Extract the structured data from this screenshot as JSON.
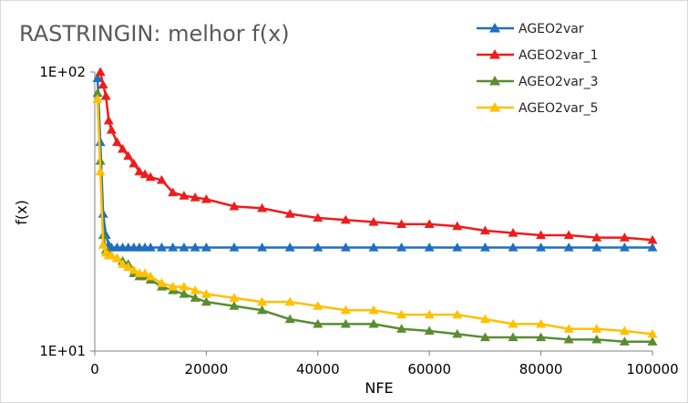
{
  "chart_data": {
    "type": "line",
    "title": "RASTRINGIN: melhor f(x)",
    "xlabel": "NFE",
    "ylabel": "f(x)",
    "xlim": [
      0,
      100000
    ],
    "ylim": [
      10,
      100
    ],
    "yscale": "log",
    "x_ticks": [
      0,
      20000,
      40000,
      60000,
      80000,
      100000
    ],
    "x_tick_labels": [
      "0",
      "20000",
      "40000",
      "60000",
      "80000",
      "100000"
    ],
    "y_ticks": [
      10,
      100
    ],
    "y_tick_labels": [
      "1E+01",
      "1E+02"
    ],
    "grid": false,
    "legend_position": "top-right",
    "marker": "triangle",
    "series": [
      {
        "name": "AGEO2var",
        "color": "#1f6fbf",
        "x": [
          500,
          1000,
          1500,
          2000,
          2500,
          3000,
          4000,
          5000,
          6000,
          7000,
          8000,
          9000,
          10000,
          12000,
          14000,
          16000,
          18000,
          20000,
          25000,
          30000,
          35000,
          40000,
          45000,
          50000,
          55000,
          60000,
          65000,
          70000,
          75000,
          80000,
          85000,
          90000,
          95000,
          100000
        ],
        "y": [
          95,
          56,
          31,
          26,
          24,
          23.5,
          23.5,
          23.5,
          23.5,
          23.5,
          23.5,
          23.5,
          23.5,
          23.5,
          23.5,
          23.5,
          23.5,
          23.5,
          23.5,
          23.5,
          23.5,
          23.5,
          23.5,
          23.5,
          23.5,
          23.5,
          23.5,
          23.5,
          23.5,
          23.5,
          23.5,
          23.5,
          23.5,
          23.5
        ]
      },
      {
        "name": "AGEO2var_1",
        "color": "#ee1c1c",
        "x": [
          1000,
          1500,
          2000,
          2500,
          3000,
          4000,
          5000,
          6000,
          7000,
          8000,
          9000,
          10000,
          12000,
          14000,
          16000,
          18000,
          20000,
          25000,
          30000,
          35000,
          40000,
          45000,
          50000,
          55000,
          60000,
          65000,
          70000,
          75000,
          80000,
          85000,
          90000,
          95000,
          100000
        ],
        "y": [
          100,
          90,
          82,
          67,
          62,
          56,
          53,
          50,
          47,
          44,
          43,
          42,
          41,
          37,
          36,
          35.5,
          35,
          33,
          32.5,
          31,
          30,
          29.5,
          29,
          28.5,
          28.5,
          28,
          27,
          26.5,
          26,
          26,
          25.5,
          25.5,
          25
        ]
      },
      {
        "name": "AGEO2var_3",
        "color": "#5a8c32",
        "x": [
          500,
          1000,
          1500,
          2000,
          2500,
          3000,
          4000,
          5000,
          6000,
          7000,
          8000,
          9000,
          10000,
          12000,
          14000,
          16000,
          18000,
          20000,
          25000,
          30000,
          35000,
          40000,
          45000,
          50000,
          55000,
          60000,
          65000,
          70000,
          75000,
          80000,
          85000,
          90000,
          95000,
          100000
        ],
        "y": [
          84,
          48,
          26,
          23,
          22.5,
          22,
          21.5,
          21,
          20.5,
          19,
          18.5,
          18.5,
          18,
          17,
          16.5,
          16,
          15.5,
          15,
          14.5,
          14,
          13,
          12.5,
          12.5,
          12.5,
          12,
          11.8,
          11.5,
          11.2,
          11.2,
          11.2,
          11,
          11,
          10.8,
          10.8
        ]
      },
      {
        "name": "AGEO2var_5",
        "color": "#ffc000",
        "x": [
          500,
          1000,
          1500,
          2000,
          2500,
          3000,
          4000,
          5000,
          6000,
          7000,
          8000,
          9000,
          10000,
          12000,
          14000,
          16000,
          18000,
          20000,
          25000,
          30000,
          35000,
          40000,
          45000,
          50000,
          55000,
          60000,
          65000,
          70000,
          75000,
          80000,
          85000,
          90000,
          95000,
          100000
        ],
        "y": [
          80,
          44,
          24,
          22.5,
          22,
          22,
          21.5,
          20.5,
          20,
          19.5,
          19,
          19,
          18.5,
          17.5,
          17,
          17,
          16.5,
          16,
          15.5,
          15,
          15,
          14.5,
          14,
          14,
          13.5,
          13.5,
          13.5,
          13,
          12.5,
          12.5,
          12,
          12,
          11.8,
          11.5
        ]
      }
    ]
  }
}
